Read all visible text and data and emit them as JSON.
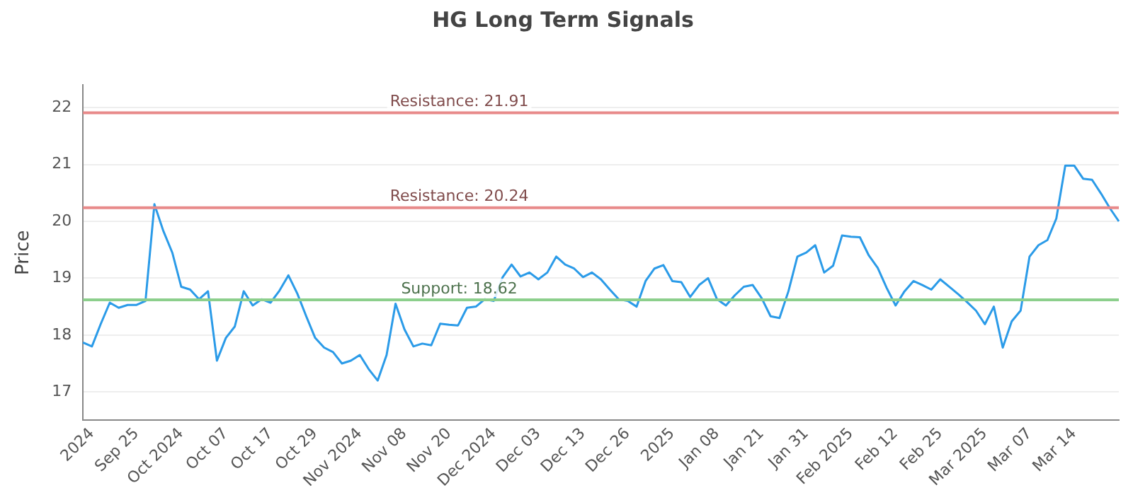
{
  "chart_data": {
    "type": "line",
    "title": "HG Long Term Signals",
    "ylabel": "Price",
    "categories": [
      null,
      "2024",
      null,
      null,
      null,
      null,
      "Sep 25",
      null,
      null,
      null,
      null,
      "Oct 2024",
      null,
      null,
      null,
      null,
      "Oct 07",
      null,
      null,
      null,
      null,
      "Oct 17",
      null,
      null,
      null,
      null,
      "Oct 29",
      null,
      null,
      null,
      null,
      "Nov 2024",
      null,
      null,
      null,
      null,
      "Nov 08",
      null,
      null,
      null,
      null,
      "Nov 20",
      null,
      null,
      null,
      null,
      "Dec 2024",
      null,
      null,
      null,
      null,
      "Dec 03",
      null,
      null,
      null,
      null,
      "Dec 13",
      null,
      null,
      null,
      null,
      "Dec 26",
      null,
      null,
      null,
      null,
      "2025",
      null,
      null,
      null,
      null,
      "Jan 08",
      null,
      null,
      null,
      null,
      "Jan 21",
      null,
      null,
      null,
      null,
      "Jan 31",
      null,
      null,
      null,
      null,
      "Feb 2025",
      null,
      null,
      null,
      null,
      "Feb 12",
      null,
      null,
      null,
      null,
      "Feb 25",
      null,
      null,
      null,
      null,
      "Mar 2025",
      null,
      null,
      null,
      null,
      "Mar 07",
      null,
      null,
      null,
      null,
      "Mar 14",
      null,
      null,
      null,
      null,
      null
    ],
    "series": [
      {
        "color": "#2b9be8",
        "values": [
          17.87,
          17.8,
          18.2,
          18.57,
          18.48,
          18.53,
          18.53,
          18.6,
          20.3,
          19.83,
          19.45,
          18.85,
          18.8,
          18.63,
          18.77,
          17.55,
          17.95,
          18.15,
          18.77,
          18.52,
          18.63,
          18.57,
          18.78,
          19.05,
          18.73,
          18.33,
          17.95,
          17.78,
          17.7,
          17.5,
          17.55,
          17.65,
          17.4,
          17.2,
          17.65,
          18.55,
          18.1,
          17.8,
          17.85,
          17.82,
          18.2,
          18.18,
          18.17,
          18.48,
          18.5,
          18.63,
          18.6,
          19.02,
          19.24,
          19.03,
          19.1,
          18.98,
          19.1,
          19.38,
          19.24,
          19.17,
          19.02,
          19.1,
          18.98,
          18.8,
          18.63,
          18.6,
          18.5,
          18.95,
          19.17,
          19.23,
          18.95,
          18.93,
          18.67,
          18.88,
          19.0,
          18.63,
          18.52,
          18.7,
          18.85,
          18.88,
          18.65,
          18.33,
          18.3,
          18.77,
          19.38,
          19.45,
          19.58,
          19.1,
          19.22,
          19.75,
          19.73,
          19.72,
          19.4,
          19.18,
          18.83,
          18.52,
          18.77,
          18.95,
          18.88,
          18.8,
          18.98,
          18.85,
          18.72,
          18.58,
          18.43,
          18.19,
          18.5,
          17.78,
          18.24,
          18.43,
          19.38,
          19.58,
          19.67,
          20.05,
          20.98,
          20.98,
          20.75,
          20.73,
          20.49,
          20.23,
          20.0
        ]
      }
    ],
    "ylim": [
      16.5,
      22.4
    ],
    "yticks": [
      17,
      18,
      19,
      20,
      21,
      22
    ],
    "grid": "y",
    "legend": false,
    "marker": "none",
    "line_style": "solid",
    "ref_lines": [
      {
        "axis": "y",
        "value": 21.91,
        "label": "Resistance: 21.91",
        "color": "#e88a8a"
      },
      {
        "axis": "y",
        "value": 20.24,
        "label": "Resistance: 20.24",
        "color": "#e88a8a"
      },
      {
        "axis": "y",
        "value": 18.62,
        "label": "Support: 18.62",
        "color": "#8ccf8c"
      }
    ]
  }
}
